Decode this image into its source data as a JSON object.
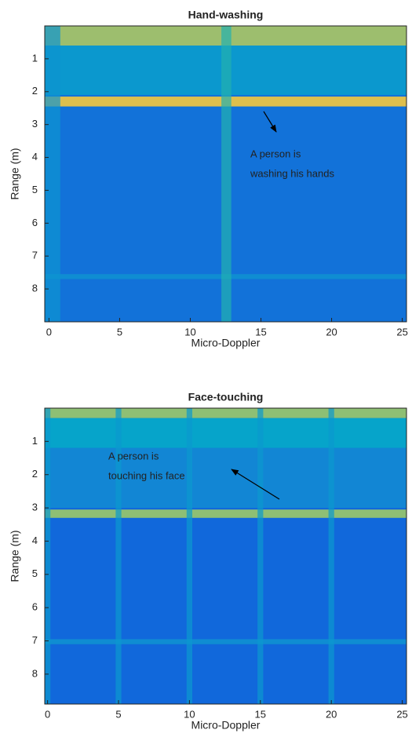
{
  "chart_data": [
    {
      "type": "heatmap",
      "title": "Hand-washing",
      "xlabel": "Micro-Doppler",
      "ylabel": "Range (m)",
      "xlim": [
        -0.3,
        25.3
      ],
      "ylim": [
        0,
        9
      ],
      "xticks": [
        0,
        5,
        10,
        15,
        20,
        25
      ],
      "yticks": [
        1,
        2,
        3,
        4,
        5,
        6,
        7,
        8
      ],
      "background_level": 0.34,
      "rows": [
        {
          "y0": 0,
          "y1": 0.6,
          "level": 0.78
        },
        {
          "y0": 0.6,
          "y1": 2.1,
          "level": 0.5
        },
        {
          "y0": 2.15,
          "y1": 2.45,
          "level": 0.88
        },
        {
          "y0": 7.55,
          "y1": 7.7,
          "level": 0.45
        }
      ],
      "columns": [
        {
          "x0": -0.3,
          "x1": 0.8,
          "level": 0.48
        },
        {
          "x0": 12.2,
          "x1": 12.9,
          "level": 0.62
        }
      ],
      "annotation": [
        "A person is",
        "washing his hands"
      ]
    },
    {
      "type": "heatmap",
      "title": "Face-touching",
      "xlabel": "Micro-Doppler",
      "ylabel": "Range (m)",
      "xlim": [
        -0.2,
        25.3
      ],
      "ylim": [
        0,
        8.9
      ],
      "xticks": [
        0,
        5,
        10,
        15,
        20,
        25
      ],
      "yticks": [
        1,
        2,
        3,
        4,
        5,
        6,
        7,
        8
      ],
      "background_level": 0.3,
      "rows": [
        {
          "y0": 0,
          "y1": 0.3,
          "level": 0.76
        },
        {
          "y0": 0.3,
          "y1": 1.2,
          "level": 0.55
        },
        {
          "y0": 1.2,
          "y1": 3.0,
          "level": 0.42
        },
        {
          "y0": 3.05,
          "y1": 3.3,
          "level": 0.76
        },
        {
          "y0": 6.95,
          "y1": 7.1,
          "level": 0.45
        }
      ],
      "columns": [
        {
          "x0": -0.2,
          "x1": 0.2,
          "level": 0.5
        },
        {
          "x0": 4.8,
          "x1": 5.2,
          "level": 0.5
        },
        {
          "x0": 9.8,
          "x1": 10.2,
          "level": 0.5
        },
        {
          "x0": 14.8,
          "x1": 15.2,
          "level": 0.5
        },
        {
          "x0": 19.8,
          "x1": 20.2,
          "level": 0.5
        }
      ],
      "annotation": [
        "A person is",
        "touching his face"
      ]
    }
  ]
}
